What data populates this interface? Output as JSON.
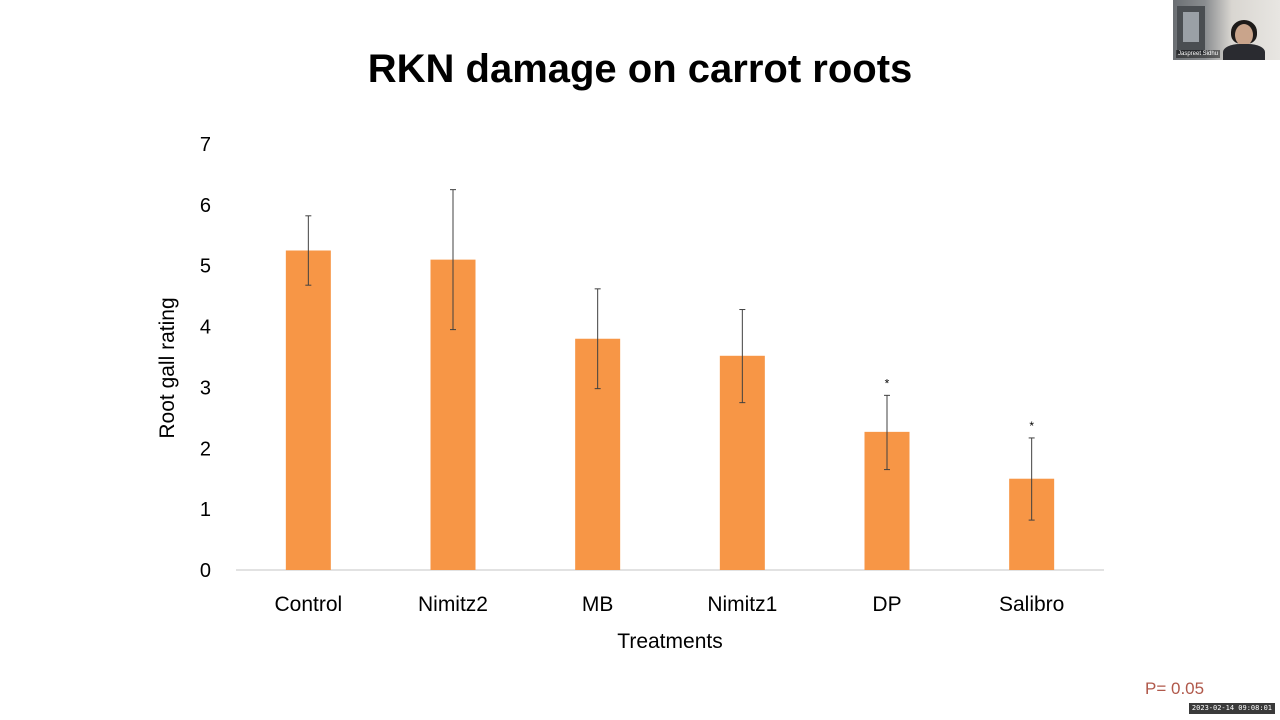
{
  "video": {
    "participant_name": "Jaspreet Sidhu",
    "timestamp": "2023-02-14 09:08:01"
  },
  "annotation": {
    "p_value": "P= 0.05"
  },
  "colors": {
    "bar": "#F79646",
    "error_bar": "#404040",
    "axis": "#d9d9d9",
    "title": "#000000",
    "pvalue": "#b0584a"
  },
  "chart_data": {
    "type": "bar",
    "title": "RKN damage on carrot roots",
    "xlabel": "Treatments",
    "ylabel": "Root gall rating",
    "ylim": [
      0,
      7
    ],
    "yticks": [
      "0",
      "1",
      "2",
      "3",
      "4",
      "5",
      "6",
      "7"
    ],
    "grid": false,
    "categories": [
      "Control",
      "Nimitz2",
      "MB",
      "Nimitz1",
      "DP",
      "Salibro"
    ],
    "values": [
      5.25,
      5.1,
      3.8,
      3.52,
      2.27,
      1.5
    ],
    "error_low": [
      4.68,
      3.95,
      2.98,
      2.75,
      1.65,
      0.82
    ],
    "error_high": [
      5.82,
      6.25,
      4.62,
      4.28,
      2.87,
      2.17
    ],
    "significance": [
      "",
      "",
      "",
      "",
      "*",
      "*"
    ]
  }
}
